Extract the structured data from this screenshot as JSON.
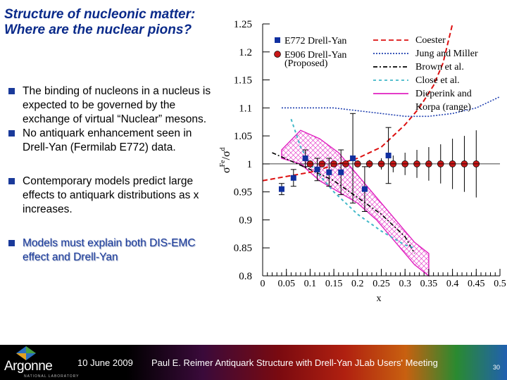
{
  "slide": {
    "title_line1": "Structure of nucleonic matter:",
    "title_line2": "Where are the nuclear pions?",
    "bullets": [
      "The binding of nucleons in a nucleus is expected to be governed by the exchange of virtual “Nuclear” mesons.",
      "No antiquark enhancement seen in Drell-Yan (Fermilab E772) data.",
      "Contemporary models predict large effects to antiquark distributions as x increases.",
      "Models must explain both DIS-EMC effect and Drell-Yan"
    ]
  },
  "footer": {
    "logo_text": "Argonne",
    "logo_subtext": "NATIONAL LABORATORY",
    "date": "10 June 2009",
    "text": "Paul E. Reimer Antiquark Structure with Drell-Yan JLab Users' Meeting",
    "page": "30"
  },
  "colors": {
    "e772": "#1030a0",
    "e906": "#c81818",
    "coester": "#dd1010",
    "jung_miller": "#2040b0",
    "brown": "#000000",
    "close": "#40b8c8",
    "dieperink": "#e020c0"
  },
  "chart_data": {
    "type": "scatter",
    "title": "",
    "xlabel": "x",
    "ylabel_main": "σ",
    "ylabel_sup": "Fe",
    "ylabel_sub": "d",
    "xlim": [
      0,
      0.5
    ],
    "ylim": [
      0.8,
      1.25
    ],
    "xticks": [
      0,
      0.05,
      0.1,
      0.15,
      0.2,
      0.25,
      0.3,
      0.35,
      0.4,
      0.45,
      0.5
    ],
    "xtick_labels": [
      "0",
      "0.05",
      "0.1",
      "0.15",
      "0.2",
      "0.25",
      "0.3",
      "0.35",
      "0.4",
      "0.45",
      "0.5"
    ],
    "yticks": [
      0.8,
      0.85,
      0.9,
      0.95,
      1.0,
      1.05,
      1.1,
      1.15,
      1.2,
      1.25
    ],
    "ytick_labels": [
      "0.8",
      "0.85",
      "0.9",
      "0.95",
      "1",
      "1.05",
      "1.1",
      "1.15",
      "1.2",
      "1.25"
    ],
    "legend": {
      "e772": "E772 Drell-Yan",
      "e906_line1": "E906 Drell-Yan",
      "e906_line2": "(Proposed)",
      "coester": "Coester",
      "jung_miller": "Jung and Miller",
      "brown": "Brown et al.",
      "close": "Close et al.",
      "dieperink_line1": "Dieperink and",
      "dieperink_line2": "Korpa (range)"
    },
    "series": [
      {
        "name": "E772 Drell-Yan",
        "kind": "points",
        "x": [
          0.04,
          0.065,
          0.09,
          0.115,
          0.14,
          0.165,
          0.19,
          0.215,
          0.265
        ],
        "y": [
          0.955,
          0.975,
          1.01,
          0.99,
          0.985,
          0.985,
          1.01,
          0.955,
          1.015
        ],
        "err": [
          0.01,
          0.015,
          0.015,
          0.02,
          0.025,
          0.04,
          0.08,
          0.04,
          0.05
        ]
      },
      {
        "name": "E906 Drell-Yan (Proposed)",
        "kind": "points",
        "x": [
          0.1,
          0.125,
          0.15,
          0.175,
          0.2,
          0.225,
          0.25,
          0.275,
          0.3,
          0.325,
          0.35,
          0.375,
          0.4,
          0.425,
          0.45
        ],
        "y": [
          1,
          1,
          1,
          1,
          1,
          1,
          1,
          1,
          1,
          1,
          1,
          1,
          1,
          1,
          1
        ],
        "err": [
          0.005,
          0.005,
          0.005,
          0.005,
          0.006,
          0.007,
          0.01,
          0.015,
          0.02,
          0.025,
          0.03,
          0.035,
          0.045,
          0.05,
          0.06
        ]
      },
      {
        "name": "Coester",
        "kind": "line",
        "x": [
          0.0,
          0.1,
          0.2,
          0.25,
          0.3,
          0.33,
          0.36,
          0.38,
          0.4
        ],
        "y": [
          0.97,
          0.985,
          1.01,
          1.03,
          1.07,
          1.1,
          1.14,
          1.18,
          1.25
        ]
      },
      {
        "name": "Jung and Miller",
        "kind": "line",
        "x": [
          0.04,
          0.1,
          0.15,
          0.2,
          0.25,
          0.3,
          0.35,
          0.4,
          0.45,
          0.5
        ],
        "y": [
          1.1,
          1.1,
          1.1,
          1.095,
          1.09,
          1.085,
          1.085,
          1.09,
          1.1,
          1.12
        ]
      },
      {
        "name": "Brown et al.",
        "kind": "line",
        "x": [
          0.02,
          0.1,
          0.15,
          0.2,
          0.25,
          0.3,
          0.32
        ],
        "y": [
          1.02,
          0.99,
          0.97,
          0.94,
          0.91,
          0.87,
          0.84
        ]
      },
      {
        "name": "Close et al.",
        "kind": "line",
        "x": [
          0.06,
          0.08,
          0.1,
          0.15,
          0.2,
          0.25,
          0.3,
          0.32
        ],
        "y": [
          1.08,
          1.03,
          1.0,
          0.95,
          0.91,
          0.88,
          0.855,
          0.85
        ]
      },
      {
        "name": "Dieperink and Korpa (range)",
        "kind": "band",
        "x": [
          0.04,
          0.08,
          0.12,
          0.16,
          0.2,
          0.24,
          0.28,
          0.32,
          0.35
        ],
        "upper": [
          1.025,
          1.06,
          1.045,
          1.02,
          0.98,
          0.94,
          0.9,
          0.86,
          0.84
        ],
        "lower": [
          1.01,
          1.0,
          0.97,
          0.95,
          0.93,
          0.9,
          0.86,
          0.82,
          0.8
        ]
      }
    ]
  }
}
